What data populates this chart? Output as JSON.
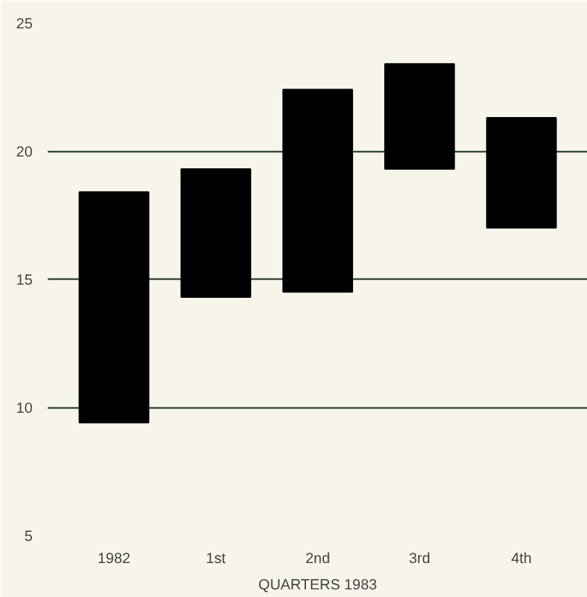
{
  "chart_data": {
    "type": "bar",
    "xlabel": "QUARTERS 1983",
    "categories": [
      "1982",
      "1st",
      "2nd",
      "3rd",
      "4th"
    ],
    "base": [
      9.4,
      14.3,
      14.5,
      19.3,
      17.0
    ],
    "values": [
      9.0,
      5.0,
      7.9,
      4.1,
      4.3
    ],
    "color": "#000000",
    "ylim": [
      5,
      25
    ],
    "yticks": [
      5,
      10,
      15,
      20,
      25
    ],
    "grid": "y"
  }
}
